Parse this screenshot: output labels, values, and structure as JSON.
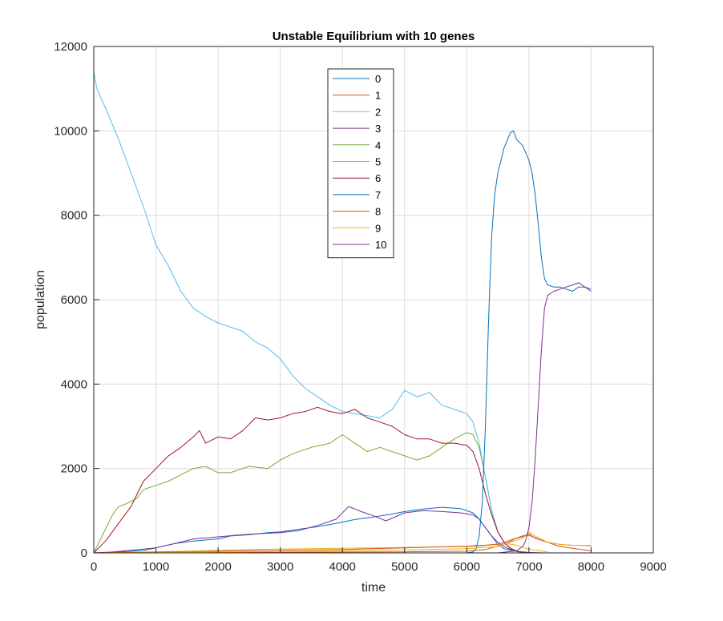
{
  "chart_data": {
    "type": "line",
    "title": "Unstable Equilibrium with 10 genes",
    "xlabel": "time",
    "ylabel": "population",
    "xlim": [
      0,
      9000
    ],
    "ylim": [
      0,
      12000
    ],
    "xticks": [
      0,
      1000,
      2000,
      3000,
      4000,
      5000,
      6000,
      7000,
      8000,
      9000
    ],
    "yticks": [
      0,
      2000,
      4000,
      6000,
      8000,
      10000,
      12000
    ],
    "grid": true,
    "legend_position": "top-center",
    "series": [
      {
        "name": "0",
        "color": "#0072BD",
        "x": [
          0,
          200,
          500,
          800,
          1000,
          1300,
          1600,
          2000,
          2200,
          2500,
          2800,
          3000,
          3300,
          3600,
          3900,
          4200,
          4500,
          4800,
          5000,
          5300,
          5600,
          5900,
          6100,
          6200,
          6300,
          6400,
          6500,
          6600,
          6700,
          6800,
          6900,
          7000,
          7100,
          7300
        ],
        "y": [
          0,
          5,
          30,
          60,
          120,
          220,
          280,
          330,
          400,
          430,
          480,
          500,
          560,
          620,
          700,
          790,
          850,
          920,
          980,
          1040,
          1080,
          1050,
          950,
          800,
          600,
          400,
          200,
          100,
          60,
          30,
          15,
          5,
          2,
          0
        ]
      },
      {
        "name": "1",
        "color": "#D95319",
        "x": [
          0,
          1000,
          2000,
          3000,
          4000,
          5000,
          6000,
          6300,
          6600,
          6800,
          7000,
          7200,
          7500,
          8000
        ],
        "y": [
          0,
          5,
          10,
          15,
          20,
          25,
          40,
          80,
          200,
          350,
          420,
          300,
          150,
          50
        ]
      },
      {
        "name": "2",
        "color": "#EDB120",
        "x": [
          0,
          500,
          1000,
          1500,
          2000,
          2500,
          3000,
          3500,
          4000,
          4500,
          5000,
          5500,
          6000,
          6200,
          6400,
          6600,
          6800,
          7000,
          7300
        ],
        "y": [
          0,
          10,
          20,
          40,
          60,
          80,
          90,
          100,
          110,
          120,
          130,
          140,
          150,
          160,
          200,
          230,
          180,
          90,
          20
        ]
      },
      {
        "name": "3",
        "color": "#7E2F8E",
        "x": [
          0,
          300,
          600,
          1000,
          1300,
          1600,
          2000,
          2300,
          2600,
          3000,
          3300,
          3600,
          3900,
          4100,
          4300,
          4500,
          4700,
          5000,
          5300,
          5600,
          5900,
          6100,
          6200,
          6300,
          6400,
          6500,
          6600,
          6700,
          6800,
          7000,
          7200
        ],
        "y": [
          0,
          20,
          60,
          120,
          220,
          330,
          380,
          420,
          450,
          480,
          530,
          650,
          800,
          1100,
          980,
          880,
          760,
          950,
          1000,
          980,
          950,
          900,
          800,
          600,
          400,
          250,
          150,
          80,
          40,
          10,
          0
        ]
      },
      {
        "name": "4",
        "color": "#77AC30",
        "x": [
          0,
          100,
          200,
          300,
          400,
          500,
          700,
          800,
          1000,
          1200,
          1400,
          1600,
          1800,
          2000,
          2200,
          2500,
          2800,
          3000,
          3200,
          3500,
          3800,
          4000,
          4200,
          4400,
          4600,
          4800,
          5000,
          5200,
          5400,
          5600,
          5800,
          6000,
          6100,
          6200,
          6300,
          6400,
          6500,
          6600,
          6700,
          6800,
          6900
        ],
        "y": [
          0,
          300,
          600,
          900,
          1100,
          1150,
          1300,
          1500,
          1600,
          1700,
          1850,
          2000,
          2050,
          1900,
          1900,
          2050,
          2000,
          2200,
          2350,
          2500,
          2600,
          2800,
          2600,
          2400,
          2500,
          2400,
          2300,
          2200,
          2300,
          2500,
          2700,
          2850,
          2800,
          2500,
          1800,
          1000,
          500,
          250,
          120,
          50,
          10
        ]
      },
      {
        "name": "5",
        "color": "#4DBEEE",
        "x": [
          0,
          50,
          200,
          400,
          600,
          800,
          1000,
          1200,
          1400,
          1600,
          1800,
          2000,
          2200,
          2400,
          2600,
          2800,
          3000,
          3200,
          3400,
          3600,
          3800,
          4000,
          4200,
          4400,
          4600,
          4800,
          5000,
          5200,
          5400,
          5600,
          5800,
          6000,
          6100,
          6200,
          6300,
          6400,
          6500,
          6600,
          6700,
          6800
        ],
        "y": [
          11400,
          11000,
          10500,
          9800,
          9000,
          8200,
          7300,
          6800,
          6200,
          5800,
          5600,
          5450,
          5350,
          5250,
          5000,
          4850,
          4600,
          4200,
          3900,
          3700,
          3500,
          3350,
          3300,
          3250,
          3200,
          3400,
          3850,
          3700,
          3800,
          3500,
          3400,
          3300,
          3100,
          2600,
          1800,
          1000,
          500,
          250,
          100,
          30
        ]
      },
      {
        "name": "6",
        "color": "#A2142F",
        "x": [
          0,
          200,
          400,
          600,
          800,
          1000,
          1200,
          1400,
          1600,
          1700,
          1800,
          2000,
          2200,
          2400,
          2600,
          2800,
          3000,
          3200,
          3400,
          3600,
          3800,
          4000,
          4200,
          4400,
          4600,
          4800,
          5000,
          5200,
          5400,
          5600,
          5800,
          6000,
          6100,
          6200,
          6300,
          6400,
          6500,
          6600,
          6700,
          6800,
          6900
        ],
        "y": [
          0,
          300,
          700,
          1100,
          1700,
          2000,
          2300,
          2500,
          2750,
          2900,
          2600,
          2750,
          2700,
          2900,
          3200,
          3150,
          3200,
          3300,
          3350,
          3450,
          3350,
          3300,
          3400,
          3200,
          3100,
          3000,
          2800,
          2700,
          2700,
          2600,
          2600,
          2550,
          2400,
          2000,
          1400,
          900,
          500,
          250,
          100,
          40,
          10
        ]
      },
      {
        "name": "7",
        "color": "#0072BD",
        "x": [
          0,
          6000,
          6100,
          6150,
          6200,
          6250,
          6300,
          6350,
          6400,
          6450,
          6500,
          6600,
          6700,
          6750,
          6800,
          6900,
          7000,
          7050,
          7100,
          7150,
          7200,
          7250,
          7300,
          7400,
          7500,
          7600,
          7700,
          7800,
          7900,
          8000
        ],
        "y": [
          0,
          0,
          20,
          100,
          400,
          1200,
          3000,
          5500,
          7500,
          8500,
          9000,
          9600,
          9950,
          10000,
          9800,
          9650,
          9300,
          9000,
          8500,
          7800,
          7000,
          6500,
          6350,
          6300,
          6300,
          6250,
          6200,
          6300,
          6300,
          6250
        ]
      },
      {
        "name": "8",
        "color": "#D95319",
        "x": [
          0,
          1000,
          2000,
          3000,
          4000,
          4500,
          5000,
          5500,
          6000,
          6500,
          6700,
          6900,
          7000,
          7100,
          7300,
          7500,
          7700,
          8000
        ],
        "y": [
          0,
          20,
          40,
          60,
          80,
          100,
          120,
          140,
          160,
          200,
          300,
          400,
          450,
          350,
          250,
          200,
          180,
          170
        ]
      },
      {
        "name": "9",
        "color": "#EDB120",
        "x": [
          0,
          1000,
          2000,
          3000,
          4000,
          5000,
          6000,
          6500,
          6700,
          6900,
          7000,
          7100,
          7300,
          7500,
          7700,
          8000
        ],
        "y": [
          0,
          10,
          20,
          30,
          50,
          70,
          100,
          150,
          250,
          350,
          500,
          400,
          250,
          200,
          180,
          180
        ]
      },
      {
        "name": "10",
        "color": "#7E2F8E",
        "x": [
          0,
          6500,
          6800,
          6900,
          6950,
          7000,
          7050,
          7100,
          7150,
          7200,
          7250,
          7300,
          7400,
          7500,
          7600,
          7700,
          7800,
          7900,
          8000
        ],
        "y": [
          0,
          0,
          50,
          150,
          300,
          600,
          1200,
          2200,
          3500,
          4800,
          5800,
          6100,
          6200,
          6250,
          6300,
          6350,
          6400,
          6300,
          6200
        ]
      }
    ]
  }
}
